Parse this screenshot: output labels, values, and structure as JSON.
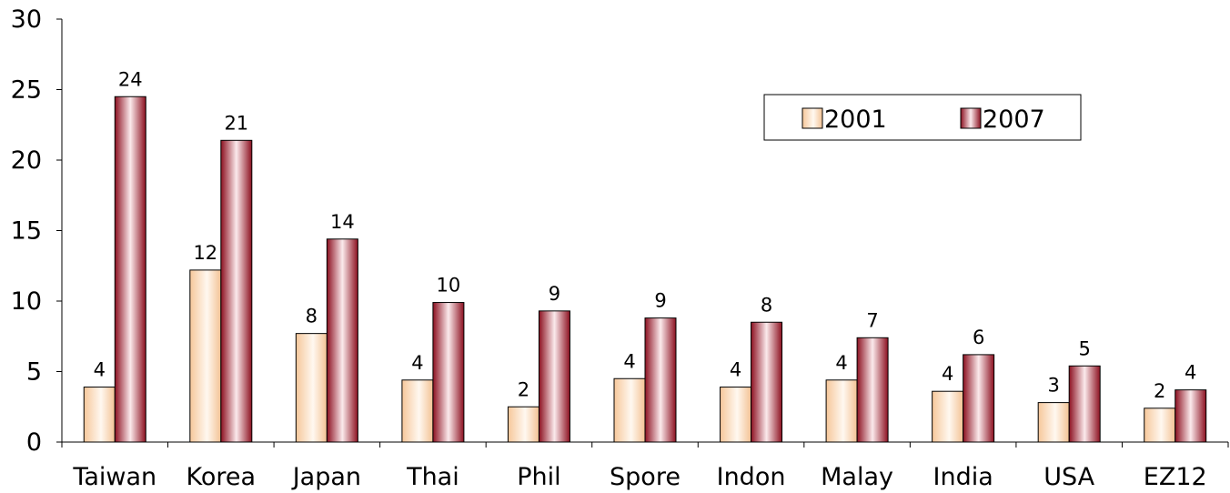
{
  "chart_data": {
    "type": "bar",
    "title": "",
    "xlabel": "",
    "ylabel": "",
    "ylim": [
      0,
      30
    ],
    "yticks": [
      0,
      5,
      10,
      15,
      20,
      25,
      30
    ],
    "categories": [
      "Taiwan",
      "Korea",
      "Japan",
      "Thai",
      "Phil",
      "Spore",
      "Indon",
      "Malay",
      "India",
      "USA",
      "EZ12"
    ],
    "series": [
      {
        "name": "2001",
        "values": [
          3.9,
          12.2,
          7.7,
          4.4,
          2.5,
          4.5,
          3.9,
          4.4,
          3.6,
          2.8,
          2.4
        ],
        "labels": [
          "4",
          "12",
          "8",
          "4",
          "2",
          "4",
          "4",
          "4",
          "4",
          "3",
          "2"
        ],
        "color": "#f9d9b6"
      },
      {
        "name": "2007",
        "values": [
          24.5,
          21.4,
          14.4,
          9.9,
          9.3,
          8.8,
          8.5,
          7.4,
          6.2,
          5.4,
          3.7
        ],
        "labels": [
          "24",
          "21",
          "14",
          "10",
          "9",
          "9",
          "8",
          "7",
          "6",
          "5",
          "4"
        ],
        "color": "#a3202c"
      }
    ],
    "legend": {
      "position": "top-right",
      "entries": [
        "2001",
        "2007"
      ]
    },
    "grid": false
  }
}
